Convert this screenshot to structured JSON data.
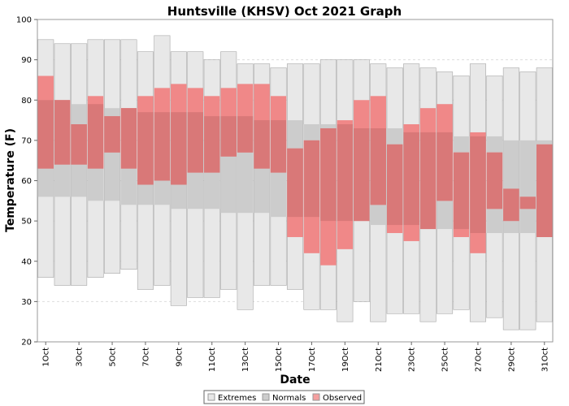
{
  "chart_data": {
    "type": "bar",
    "title": "Huntsville (KHSV) Oct 2021 Graph",
    "xlabel": "Date",
    "ylabel": "Temperature (F)",
    "ylim": [
      20,
      100
    ],
    "yticks": [
      20,
      30,
      40,
      50,
      60,
      70,
      80,
      90,
      100
    ],
    "grid": true,
    "legend_position": "bottom-center",
    "colors": {
      "extremes": "#e8e8e8",
      "normals": "#cccccc",
      "observed": "#f08888",
      "overlap": "#d97878"
    },
    "categories": [
      "1Oct",
      "2Oct",
      "3Oct",
      "4Oct",
      "5Oct",
      "6Oct",
      "7Oct",
      "8Oct",
      "9Oct",
      "10Oct",
      "11Oct",
      "12Oct",
      "13Oct",
      "14Oct",
      "15Oct",
      "16Oct",
      "17Oct",
      "18Oct",
      "19Oct",
      "20Oct",
      "21Oct",
      "22Oct",
      "23Oct",
      "24Oct",
      "25Oct",
      "26Oct",
      "27Oct",
      "28Oct",
      "29Oct",
      "30Oct",
      "31Oct"
    ],
    "tick_labels": [
      "1Oct",
      "3Oct",
      "5Oct",
      "7Oct",
      "9Oct",
      "11Oct",
      "13Oct",
      "15Oct",
      "17Oct",
      "19Oct",
      "21Oct",
      "23Oct",
      "25Oct",
      "27Oct",
      "29Oct",
      "31Oct"
    ],
    "series": [
      {
        "name": "Extremes",
        "high": [
          95,
          94,
          94,
          95,
          95,
          95,
          92,
          96,
          92,
          92,
          90,
          92,
          89,
          89,
          88,
          89,
          89,
          90,
          90,
          90,
          89,
          88,
          89,
          88,
          87,
          86,
          89,
          86,
          88,
          87,
          88
        ],
        "low": [
          36,
          34,
          34,
          36,
          37,
          38,
          33,
          34,
          29,
          31,
          31,
          33,
          28,
          34,
          34,
          33,
          28,
          28,
          25,
          30,
          25,
          27,
          27,
          25,
          27,
          28,
          25,
          26,
          23,
          23,
          25
        ]
      },
      {
        "name": "Normals",
        "high": [
          80,
          80,
          79,
          79,
          78,
          78,
          77,
          77,
          77,
          77,
          76,
          76,
          76,
          75,
          75,
          75,
          74,
          74,
          74,
          73,
          73,
          73,
          72,
          72,
          72,
          71,
          71,
          71,
          70,
          70,
          70
        ],
        "low": [
          56,
          56,
          56,
          55,
          55,
          54,
          54,
          54,
          53,
          53,
          53,
          52,
          52,
          52,
          51,
          51,
          51,
          50,
          50,
          50,
          49,
          49,
          49,
          48,
          48,
          48,
          47,
          47,
          47,
          47,
          46
        ]
      },
      {
        "name": "Observed",
        "high": [
          86,
          80,
          74,
          81,
          76,
          78,
          81,
          83,
          84,
          83,
          81,
          83,
          84,
          84,
          81,
          68,
          70,
          73,
          75,
          80,
          81,
          69,
          74,
          78,
          79,
          67,
          72,
          67,
          58,
          56,
          69
        ],
        "low": [
          63,
          64,
          64,
          63,
          67,
          63,
          59,
          60,
          59,
          62,
          62,
          66,
          67,
          63,
          62,
          46,
          42,
          39,
          43,
          50,
          54,
          47,
          45,
          48,
          55,
          46,
          42,
          53,
          50,
          53,
          46
        ]
      }
    ]
  }
}
